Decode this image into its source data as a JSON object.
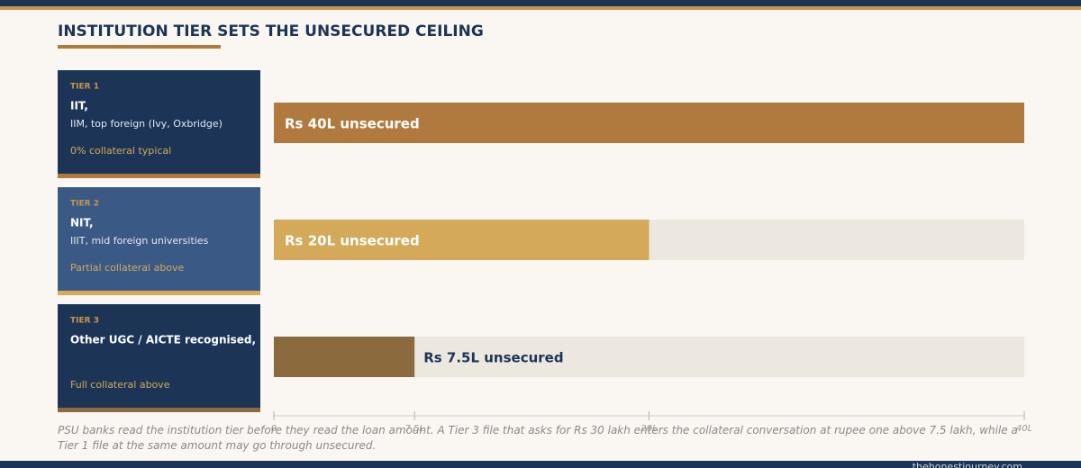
{
  "chart_data": {
    "type": "hbar",
    "title": "INSTITUTION TIER SETS THE UNSECURED CEILING",
    "tiers": [
      {
        "tag": "TIER 1",
        "name": "IIT,",
        "detail": "IIM, top foreign (Ivy, Oxbridge)",
        "note": "0% collateral typical"
      },
      {
        "tag": "TIER 2",
        "name": "NIT,",
        "detail": "IIIT, mid foreign universities",
        "note": "Partial collateral above"
      },
      {
        "tag": "TIER 3",
        "name": "Other UGC / AICTE recognised,",
        "detail": "",
        "note": "Full collateral above"
      }
    ],
    "values": [
      40,
      20,
      7.5
    ],
    "value_labels": [
      "Rs 40L unsecured",
      "Rs 20L unsecured",
      "Rs 7.5L unsecured"
    ],
    "colors": [
      "#b07a3e",
      "#d4a95a",
      "#8b6a3e"
    ],
    "xlim": [
      0,
      40
    ],
    "xticks": [
      0,
      {
        "value": 7.5,
        "label": "7.5L"
      },
      {
        "value": 20,
        "label": "20L"
      },
      {
        "value": 40,
        "label": "40L"
      }
    ],
    "caption": "PSU banks read the institution tier before they read the loan amount. A Tier 3 file that asks for Rs 30 lakh enters the collateral conversation at rupee one above 7.5 lakh, while a Tier 1 file at the same amount may go through unsecured.",
    "source": "thehonestjourney.com"
  }
}
